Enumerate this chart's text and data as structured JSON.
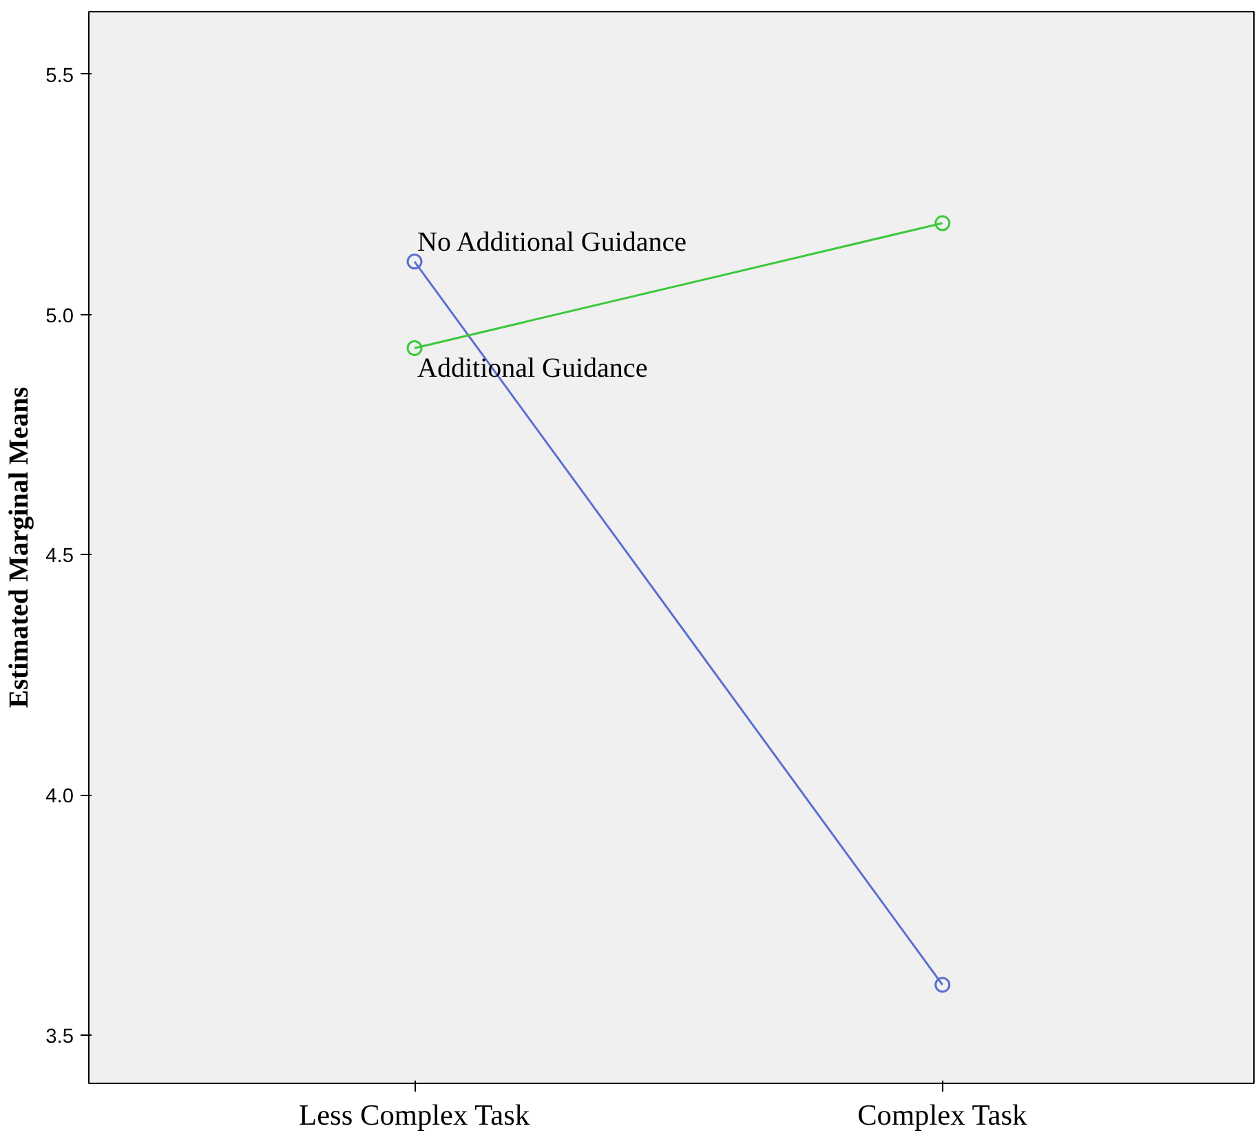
{
  "chart_data": {
    "type": "line",
    "ylabel": "Estimated Marginal Means",
    "categories": [
      "Less Complex Task",
      "Complex Task"
    ],
    "series": [
      {
        "name": "No Additional Guidance",
        "color": "#5b6fd0",
        "values": [
          5.11,
          3.605
        ]
      },
      {
        "name": "Additional Guidance",
        "color": "#3cc83c",
        "values": [
          4.93,
          5.19
        ]
      }
    ],
    "ylim": [
      3.4,
      5.63
    ],
    "yticks": [
      3.5,
      {
        "value": 4,
        "label": "4.0"
      },
      4.5,
      {
        "value": 5,
        "label": "5.0"
      },
      5.5
    ],
    "marker": "circle",
    "line_style": "solid"
  }
}
